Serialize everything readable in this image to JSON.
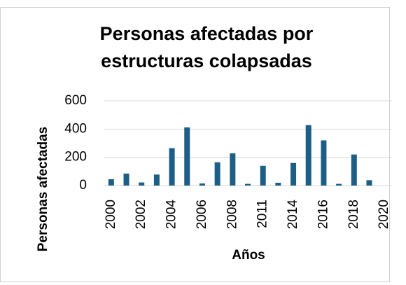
{
  "chart_data": {
    "type": "bar",
    "title": "Personas afectadas por estructuras colapsadas",
    "x_label": "Años",
    "y_label": "Personas afectadas",
    "categories": [
      "2000",
      null,
      "2002",
      null,
      "2004",
      null,
      "2006",
      null,
      "2008",
      null,
      "2011",
      null,
      "2014",
      null,
      "2016",
      null,
      "2018",
      null,
      "2020"
    ],
    "values": [
      45,
      85,
      22,
      78,
      265,
      412,
      15,
      165,
      228,
      12,
      140,
      20,
      160,
      428,
      320,
      12,
      220,
      38,
      0
    ],
    "color": "#1d5e86",
    "ylim": [
      0,
      600
    ],
    "yticks": [
      0,
      200,
      400,
      600
    ],
    "grid": true
  }
}
